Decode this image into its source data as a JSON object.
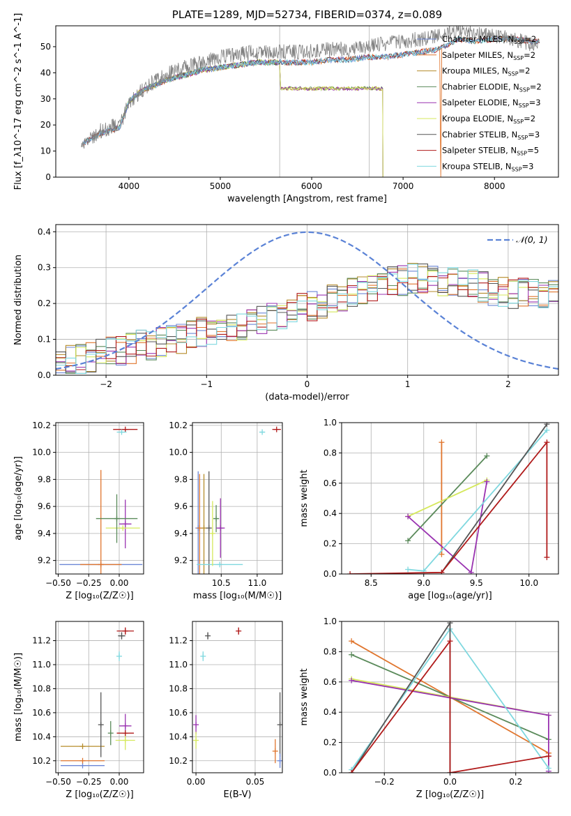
{
  "figure": {
    "title": "PLATE=1289, MJD=52734, FIBERID=0374, z=0.089"
  },
  "series_styles": [
    {
      "name": "Chabrier MILES",
      "nssp": "2",
      "color": "#6b86d6"
    },
    {
      "name": "Salpeter MILES",
      "nssp": "2",
      "color": "#e0752d"
    },
    {
      "name": "Kroupa MILES",
      "nssp": "2",
      "color": "#b58b2a"
    },
    {
      "name": "Chabrier ELODIE",
      "nssp": "2",
      "color": "#5a8a5a"
    },
    {
      "name": "Salpeter ELODIE",
      "nssp": "3",
      "color": "#9932b0"
    },
    {
      "name": "Kroupa ELODIE",
      "nssp": "2",
      "color": "#d5e85c"
    },
    {
      "name": "Chabrier STELIB",
      "nssp": "3",
      "color": "#555555"
    },
    {
      "name": "Salpeter STELIB",
      "nssp": "5",
      "color": "#b01a1a"
    },
    {
      "name": "Kroupa STELIB",
      "nssp": "3",
      "color": "#7fd8df"
    }
  ],
  "chart_data": [
    {
      "id": "spectrum",
      "type": "line",
      "xlabel": "wavelength [Angstrom, rest frame]",
      "ylabel": "Flux [f_λ10^-17 erg cm^-2 s^-1 A^-1]",
      "xlim": [
        3200,
        8700
      ],
      "ylim": [
        0,
        58
      ],
      "xticks": [
        4000,
        5000,
        6000,
        7000,
        8000
      ],
      "yticks": [
        0,
        10,
        20,
        30,
        40,
        50
      ],
      "grid": false,
      "legend_position": "right",
      "data_spectrum": {
        "x": [
          3500,
          3700,
          3900,
          4000,
          4100,
          4200,
          4400,
          4600,
          4800,
          5000,
          5200,
          5400,
          5600,
          5800,
          6000,
          6200,
          6400,
          6600,
          6800,
          7000,
          7200,
          7400,
          7600,
          7800,
          8000,
          8200,
          8400
        ],
        "y": [
          12,
          18,
          20,
          28,
          32,
          35,
          39,
          42,
          44,
          46,
          47,
          48,
          48,
          48,
          48,
          49,
          49,
          50,
          51,
          52,
          53,
          54,
          56,
          55,
          54,
          53,
          51
        ]
      },
      "model_envelope": {
        "x": [
          3500,
          3700,
          3900,
          4000,
          4100,
          4200,
          4400,
          4600,
          4800,
          5000,
          5200,
          5400,
          5600,
          5800,
          6000,
          6200,
          6400,
          6600,
          6800,
          7000,
          7200,
          7400,
          7600,
          7800,
          8000,
          8200,
          8400
        ],
        "y": [
          13,
          17,
          19,
          29,
          32,
          34,
          37,
          39,
          41,
          42,
          43,
          44,
          44,
          44,
          44,
          45,
          45,
          46,
          46,
          47,
          48,
          49,
          53,
          52,
          53,
          53,
          52
        ]
      },
      "truncated_models_flux_5650_6800": 34,
      "vertical_lines": [
        5650,
        6630
      ]
    },
    {
      "id": "residuals",
      "type": "line",
      "xlabel": "(data-model)/error",
      "ylabel": "Normed distribution",
      "xlim": [
        -2.5,
        2.5
      ],
      "ylim": [
        0,
        0.42
      ],
      "xticks": [
        -2,
        -1,
        0,
        1,
        2
      ],
      "yticks": [
        0.0,
        0.1,
        0.2,
        0.3,
        0.4
      ],
      "grid": true,
      "legend": "𝒩(0, 1)",
      "legend_position": "top-right",
      "gaussian": {
        "mu": 0,
        "sigma": 1
      },
      "histogram_bin_width": 0.1,
      "hist_anchor": {
        "x": [
          -2.5,
          -2,
          -1.5,
          -1,
          -0.5,
          0,
          0.5,
          1,
          1.5,
          2,
          2.5
        ],
        "y": [
          0.03,
          0.06,
          0.09,
          0.12,
          0.15,
          0.19,
          0.23,
          0.27,
          0.26,
          0.23,
          0.22
        ]
      }
    },
    {
      "id": "age_vs_Z",
      "type": "scatter",
      "xlabel": "Z [log₁₀(Z/Z☉)]",
      "ylabel": "age  [log₁₀(age/yr)]",
      "xlim": [
        -0.52,
        0.2
      ],
      "ylim": [
        9.1,
        10.22
      ],
      "xticks": [
        -0.5,
        -0.25,
        0.0
      ],
      "xticklabels": [
        "−0.50",
        "−0.25",
        "0.00"
      ],
      "yticks": [
        9.2,
        9.4,
        9.6,
        9.8,
        10.0,
        10.2
      ],
      "grid": true,
      "points": [
        {
          "s": 0,
          "x": -0.15,
          "xe": 0.34,
          "y": 9.17,
          "ye": 0.0
        },
        {
          "s": 1,
          "x": -0.15,
          "xe": 0.17,
          "y": 9.17,
          "ye": 0.7
        },
        {
          "s": 4,
          "x": 0.05,
          "xe": 0.05,
          "y": 9.47,
          "ye": 0.18
        },
        {
          "s": 5,
          "x": 0.03,
          "xe": 0.14,
          "y": 9.44,
          "ye": 0.0
        },
        {
          "s": 3,
          "x": -0.02,
          "xe": 0.17,
          "y": 9.51,
          "ye": 0.18
        },
        {
          "s": 7,
          "x": 0.05,
          "xe": 0.1,
          "y": 10.17,
          "ye": 0.0
        },
        {
          "s": 8,
          "x": 0.02,
          "xe": 0.04,
          "y": 10.15,
          "ye": 0.0
        }
      ]
    },
    {
      "id": "age_vs_mass",
      "type": "scatter",
      "xlabel": "mass [log₁₀(M/M☉)]",
      "ylabel": "",
      "xlim": [
        10.1,
        11.35
      ],
      "ylim": [
        9.1,
        10.22
      ],
      "xticks": [
        10.5,
        11.0
      ],
      "yticks": [
        9.2,
        9.4,
        9.6,
        9.8,
        10.0,
        10.2
      ],
      "grid": true,
      "points": [
        {
          "s": 0,
          "x": 10.18,
          "xe": 0.0,
          "y": 9.44,
          "ye": 0.42
        },
        {
          "s": 1,
          "x": 10.2,
          "xe": 0.0,
          "y": 9.44,
          "ye": 0.4
        },
        {
          "s": 2,
          "x": 10.26,
          "xe": 0.0,
          "y": 9.44,
          "ye": 0.4
        },
        {
          "s": 6,
          "x": 10.33,
          "xe": 0.0,
          "y": 9.44,
          "ye": 0.42
        },
        {
          "s": 8,
          "x": 10.48,
          "xe": 0.32,
          "y": 9.17,
          "ye": 0.0
        },
        {
          "s": 5,
          "x": 10.38,
          "xe": 0.0,
          "y": 9.4,
          "ye": 0.24
        },
        {
          "s": 3,
          "x": 10.43,
          "xe": 0.04,
          "y": 9.51,
          "ye": 0.1
        },
        {
          "s": 4,
          "x": 10.49,
          "xe": 0.06,
          "y": 9.44,
          "ye": 0.22
        },
        {
          "s": 8,
          "x": 11.07,
          "xe": 0.04,
          "y": 10.15,
          "ye": 0.0
        },
        {
          "s": 7,
          "x": 11.27,
          "xe": 0.06,
          "y": 10.17,
          "ye": 0.0
        }
      ]
    },
    {
      "id": "weight_vs_age",
      "type": "line",
      "xlabel": "age  [log₁₀(age/yr)]",
      "ylabel": "mass weight",
      "xlim": [
        8.22,
        10.28
      ],
      "ylim": [
        0,
        1.0
      ],
      "xticks": [
        8.5,
        9.0,
        9.5,
        10.0
      ],
      "yticks": [
        0.0,
        0.2,
        0.4,
        0.6,
        0.8,
        1.0
      ],
      "grid": true,
      "series": [
        {
          "s": 1,
          "x": [
            9.17,
            9.17
          ],
          "y": [
            0.13,
            0.87
          ]
        },
        {
          "s": 3,
          "x": [
            8.85,
            9.6
          ],
          "y": [
            0.22,
            0.78
          ]
        },
        {
          "s": 5,
          "x": [
            8.85,
            9.6
          ],
          "y": [
            0.38,
            0.62
          ]
        },
        {
          "s": 4,
          "x": [
            8.85,
            9.45,
            9.6
          ],
          "y": [
            0.38,
            0.01,
            0.61
          ]
        },
        {
          "s": 8,
          "x": [
            8.85,
            9.0,
            10.17
          ],
          "y": [
            0.03,
            0.02,
            0.95
          ]
        },
        {
          "s": 6,
          "x": [
            9.17,
            10.17
          ],
          "y": [
            0.01,
            0.99
          ]
        },
        {
          "s": 7,
          "x": [
            8.3,
            9.17,
            10.17,
            10.17
          ],
          "y": [
            0.0,
            0.01,
            0.87,
            0.11
          ]
        }
      ]
    },
    {
      "id": "mass_vs_Z",
      "type": "scatter",
      "xlabel": "Z [log₁₀(Z/Z☉)]",
      "ylabel": "mass [log₁₀(M/M☉)]",
      "xlim": [
        -0.52,
        0.2
      ],
      "ylim": [
        10.1,
        11.36
      ],
      "xticks": [
        -0.5,
        -0.25,
        0.0
      ],
      "xticklabels": [
        "−0.50",
        "−0.25",
        "0.00"
      ],
      "yticks": [
        10.2,
        10.4,
        10.6,
        10.8,
        11.0,
        11.2
      ],
      "grid": true,
      "points": [
        {
          "s": 0,
          "x": -0.3,
          "xe": 0.18,
          "y": 10.16,
          "ye": 0.0
        },
        {
          "s": 1,
          "x": -0.3,
          "xe": 0.18,
          "y": 10.2,
          "ye": 0.0
        },
        {
          "s": 2,
          "x": -0.3,
          "xe": 0.18,
          "y": 10.32,
          "ye": 0.0
        },
        {
          "s": 6,
          "x": -0.15,
          "xe": 0.0,
          "y": 10.5,
          "ye": 0.27
        },
        {
          "s": 3,
          "x": -0.07,
          "xe": 0.0,
          "y": 10.43,
          "ye": 0.1
        },
        {
          "s": 4,
          "x": 0.05,
          "xe": 0.05,
          "y": 10.49,
          "ye": 0.1
        },
        {
          "s": 5,
          "x": 0.05,
          "xe": 0.08,
          "y": 10.37,
          "ye": 0.08
        },
        {
          "s": 7,
          "x": 0.05,
          "xe": 0.07,
          "y": 10.43,
          "ye": 0.0
        },
        {
          "s": 8,
          "x": 0.0,
          "xe": 0.0,
          "y": 11.07,
          "ye": 0.04
        },
        {
          "s": 6,
          "x": 0.02,
          "xe": 0.03,
          "y": 11.24,
          "ye": 0.03
        },
        {
          "s": 7,
          "x": 0.05,
          "xe": 0.07,
          "y": 11.28,
          "ye": 0.03
        }
      ]
    },
    {
      "id": "mass_vs_ebv",
      "type": "scatter",
      "xlabel": "E(B-V)",
      "ylabel": "",
      "xlim": [
        -0.003,
        0.073
      ],
      "ylim": [
        10.1,
        11.36
      ],
      "xticks": [
        0.0,
        0.05
      ],
      "xticklabels": [
        "0.00",
        "0.05"
      ],
      "yticks": [
        10.2,
        10.4,
        10.6,
        10.8,
        11.0,
        11.2
      ],
      "grid": true,
      "points": [
        {
          "s": 4,
          "x": 0.0,
          "xe": 0.0,
          "y": 10.5,
          "ye": 0.08
        },
        {
          "s": 5,
          "x": 0.0,
          "xe": 0.0,
          "y": 10.37,
          "ye": 0.07
        },
        {
          "s": 8,
          "x": 0.006,
          "xe": 0.0,
          "y": 11.07,
          "ye": 0.04
        },
        {
          "s": 6,
          "x": 0.01,
          "xe": 0.0,
          "y": 11.24,
          "ye": 0.03
        },
        {
          "s": 7,
          "x": 0.036,
          "xe": 0.0,
          "y": 11.28,
          "ye": 0.03
        },
        {
          "s": 1,
          "x": 0.067,
          "xe": 0.0,
          "y": 10.28,
          "ye": 0.1
        },
        {
          "s": 6,
          "x": 0.071,
          "xe": 0.0,
          "y": 10.5,
          "ye": 0.27
        },
        {
          "s": 0,
          "x": 0.071,
          "xe": 0.0,
          "y": 10.2,
          "ye": 0.06
        }
      ]
    },
    {
      "id": "weight_vs_Z",
      "type": "line",
      "xlabel": "Z [log₁₀(Z/Z☉)]",
      "ylabel": "mass weight",
      "xlim": [
        -0.33,
        0.33
      ],
      "ylim": [
        0,
        1.0
      ],
      "xticks": [
        -0.2,
        0.0,
        0.2
      ],
      "xticklabels": [
        "−0.2",
        "0.0",
        "0.2"
      ],
      "yticks": [
        0.0,
        0.2,
        0.4,
        0.6,
        0.8,
        1.0
      ],
      "grid": true,
      "series": [
        {
          "s": 1,
          "x": [
            -0.3,
            0.3,
            0.3
          ],
          "y": [
            0.87,
            0.13,
            0.13
          ]
        },
        {
          "s": 3,
          "x": [
            -0.3,
            0.3
          ],
          "y": [
            0.78,
            0.22
          ]
        },
        {
          "s": 5,
          "x": [
            -0.3,
            0.3
          ],
          "y": [
            0.62,
            0.38
          ]
        },
        {
          "s": 4,
          "x": [
            -0.3,
            0.3,
            0.3
          ],
          "y": [
            0.61,
            0.38,
            0.01
          ]
        },
        {
          "s": 8,
          "x": [
            -0.3,
            0.0,
            0.3
          ],
          "y": [
            0.02,
            0.95,
            0.03
          ]
        },
        {
          "s": 6,
          "x": [
            -0.3,
            0.0,
            0.0
          ],
          "y": [
            0.0,
            0.99,
            0.0
          ]
        },
        {
          "s": 7,
          "x": [
            -0.3,
            0.0,
            0.0,
            0.3,
            0.3
          ],
          "y": [
            0.0,
            0.87,
            0.0,
            0.11,
            0.11
          ]
        }
      ]
    }
  ]
}
